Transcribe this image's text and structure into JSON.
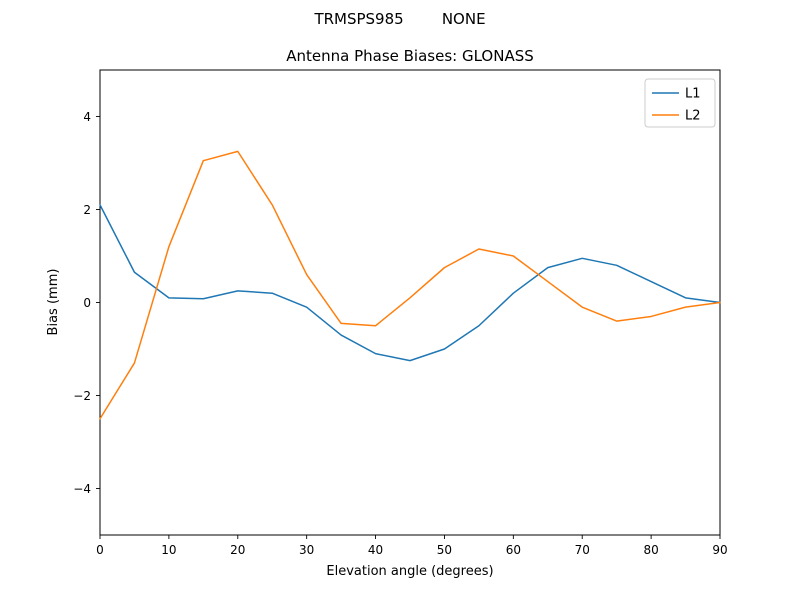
{
  "chart_data": {
    "type": "line",
    "suptitle": "TRMSPS985        NONE",
    "title": "Antenna Phase Biases: GLONASS",
    "xlabel": "Elevation angle (degrees)",
    "ylabel": "Bias (mm)",
    "xlim": [
      0,
      90
    ],
    "ylim": [
      -5,
      5
    ],
    "xticks": [
      0,
      10,
      20,
      30,
      40,
      50,
      60,
      70,
      80,
      90
    ],
    "xtick_labels": [
      "0",
      "10",
      "20",
      "30",
      "40",
      "50",
      "60",
      "70",
      "80",
      "90"
    ],
    "yticks": [
      -4,
      -2,
      0,
      2,
      4
    ],
    "ytick_labels": [
      "−4",
      "−2",
      "0",
      "2",
      "4"
    ],
    "grid": false,
    "legend_position": "upper right",
    "x": [
      0,
      5,
      10,
      15,
      20,
      25,
      30,
      35,
      40,
      45,
      50,
      55,
      60,
      65,
      70,
      75,
      80,
      85,
      90
    ],
    "series": [
      {
        "name": "L1",
        "color": "#1f77b4",
        "values": [
          2.1,
          0.65,
          0.1,
          0.08,
          0.25,
          0.2,
          -0.1,
          -0.7,
          -1.1,
          -1.25,
          -1.0,
          -0.5,
          0.2,
          0.75,
          0.95,
          0.8,
          0.45,
          0.1,
          0.0
        ]
      },
      {
        "name": "L2",
        "color": "#ff7f0e",
        "values": [
          -2.5,
          -1.3,
          1.2,
          3.05,
          3.25,
          2.1,
          0.6,
          -0.45,
          -0.5,
          0.1,
          0.75,
          1.15,
          1.0,
          0.45,
          -0.1,
          -0.4,
          -0.3,
          -0.1,
          0.0
        ]
      }
    ]
  }
}
